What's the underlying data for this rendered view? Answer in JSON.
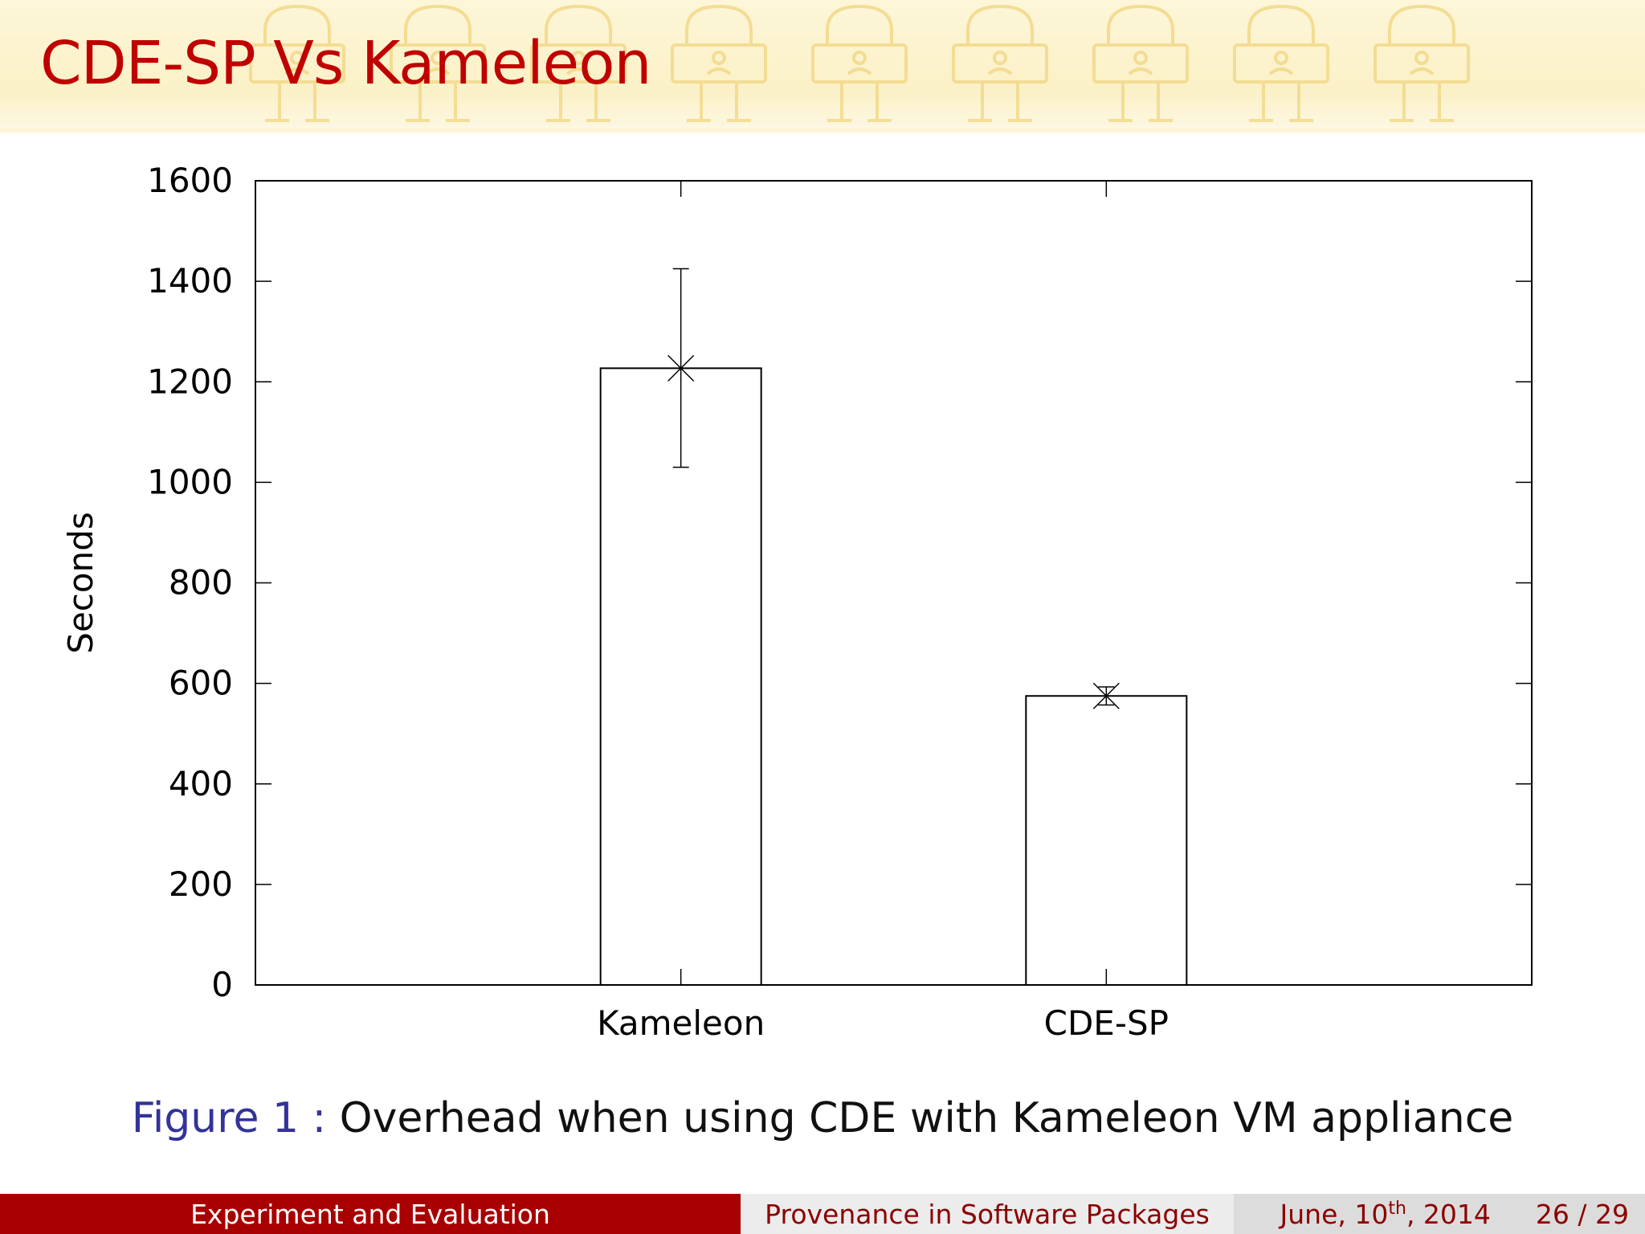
{
  "slide": {
    "title": "CDE-SP Vs Kameleon",
    "caption_label": "Figure 1 :",
    "caption_text": "Overhead when using CDE with Kameleon VM appliance"
  },
  "footer": {
    "section": "Experiment and Evaluation",
    "talk_title": "Provenance in Software Packages",
    "date_prefix": "June, 10",
    "date_sup": "th",
    "date_suffix": ", 2014",
    "page": "26 / 29"
  },
  "colors": {
    "title": "#c00000",
    "footer_left": "#a80000",
    "caption_label": "#333399",
    "header_decoration": "#f2d98a"
  },
  "chart_data": {
    "type": "bar",
    "categories": [
      "Kameleon",
      "CDE-SP"
    ],
    "values": [
      1227,
      575
    ],
    "error_low": [
      1030,
      557
    ],
    "error_high": [
      1425,
      593
    ],
    "ylabel": "Seconds",
    "xlabel": "",
    "ylim": [
      0,
      1600
    ],
    "yticks": [
      0,
      200,
      400,
      600,
      800,
      1000,
      1200,
      1400,
      1600
    ],
    "grid": false,
    "legend": "none"
  }
}
